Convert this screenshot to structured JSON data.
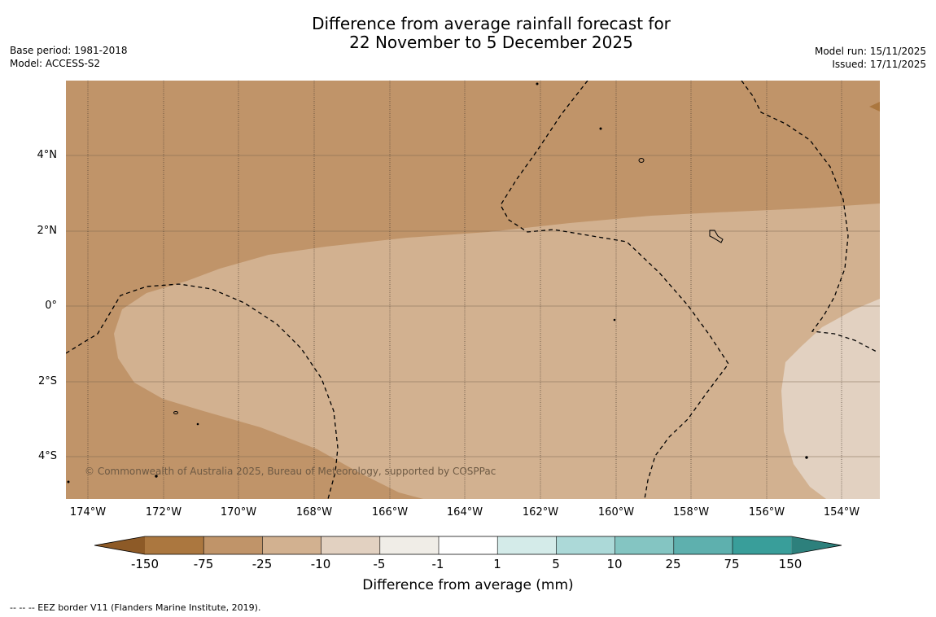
{
  "title": {
    "line1": "Difference from average rainfall forecast for",
    "line2": "22 November to 5 December 2025"
  },
  "meta_left": {
    "base_period": "Base period: 1981-2018",
    "model": "Model: ACCESS-S2"
  },
  "meta_right": {
    "model_run": "Model run: 15/11/2025",
    "issued": "Issued: 17/11/2025"
  },
  "latitude_labels": [
    "4°N",
    "2°N",
    "0°",
    "2°S",
    "4°S"
  ],
  "longitude_labels": [
    "174°W",
    "172°W",
    "170°W",
    "168°W",
    "166°W",
    "164°W",
    "162°W",
    "160°W",
    "158°W",
    "156°W",
    "154°W"
  ],
  "copyright": "© Commonwealth of Australia 2025, Bureau of Meteorology, supported by COSPPac",
  "colorbar": {
    "title": "Difference from average (mm)",
    "labels": [
      "-150",
      "-75",
      "-25",
      "-10",
      "-5",
      "-1",
      "1",
      "5",
      "10",
      "25",
      "75",
      "150"
    ],
    "colors": [
      "#ab773f",
      "#c09469",
      "#d2b190",
      "#e2d1c1",
      "#f0ede7",
      "#ffffff",
      "#d4ebe9",
      "#acd9d8",
      "#84c5c2",
      "#5eb0ae",
      "#399e9a"
    ],
    "low_arrow_color": "#8d5a27",
    "high_arrow_color": "#2d807c"
  },
  "map_colors": {
    "dark_band": "#c09469",
    "mid_band": "#d2b190",
    "light_band": "#e2d1c1",
    "eez_line": "#000000"
  },
  "footnote": "--  --  -- EEZ border V11 (Flanders Marine Institute, 2019)."
}
